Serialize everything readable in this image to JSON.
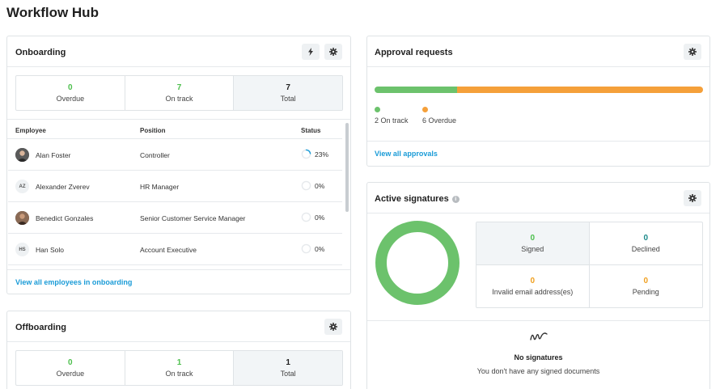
{
  "page": {
    "title": "Workflow Hub"
  },
  "onboarding": {
    "title": "Onboarding",
    "stats": [
      {
        "value": "0",
        "label": "Overdue"
      },
      {
        "value": "7",
        "label": "On track"
      },
      {
        "value": "7",
        "label": "Total"
      }
    ],
    "columns": {
      "employee": "Employee",
      "position": "Position",
      "status": "Status"
    },
    "rows": [
      {
        "initials": "",
        "name": "Alan Foster",
        "position": "Controller",
        "progress": 23,
        "progress_label": "23%"
      },
      {
        "initials": "AZ",
        "name": "Alexander Zverev",
        "position": "HR Manager",
        "progress": 0,
        "progress_label": "0%"
      },
      {
        "initials": "",
        "name": "Benedict Gonzales",
        "position": "Senior Customer Service Manager",
        "progress": 0,
        "progress_label": "0%"
      },
      {
        "initials": "HS",
        "name": "Han Solo",
        "position": "Account Executive",
        "progress": 0,
        "progress_label": "0%"
      }
    ],
    "link": "View all employees in onboarding"
  },
  "offboarding": {
    "title": "Offboarding",
    "stats": [
      {
        "value": "0",
        "label": "Overdue"
      },
      {
        "value": "1",
        "label": "On track"
      },
      {
        "value": "1",
        "label": "Total"
      }
    ]
  },
  "approvals": {
    "title": "Approval requests",
    "on_track_count": 2,
    "overdue_count": 6,
    "on_track_label": "2 On track",
    "overdue_label": "6 Overdue",
    "link": "View all approvals"
  },
  "signatures": {
    "title": "Active signatures",
    "stats": [
      {
        "value": "0",
        "label": "Signed"
      },
      {
        "value": "0",
        "label": "Declined"
      },
      {
        "value": "0",
        "label": "Invalid email address(es)"
      },
      {
        "value": "0",
        "label": "Pending"
      }
    ],
    "empty_title": "No signatures",
    "empty_subtitle": "You don't have any signed documents"
  },
  "colors": {
    "green": "#6cc26c",
    "orange": "#f5a03a",
    "link": "#1a9bd7",
    "teal": "#1b8a8a"
  },
  "icons": {
    "lightning": "lightning-icon",
    "settings": "gear-icon",
    "info": "info-icon",
    "signature": "signature-icon"
  }
}
